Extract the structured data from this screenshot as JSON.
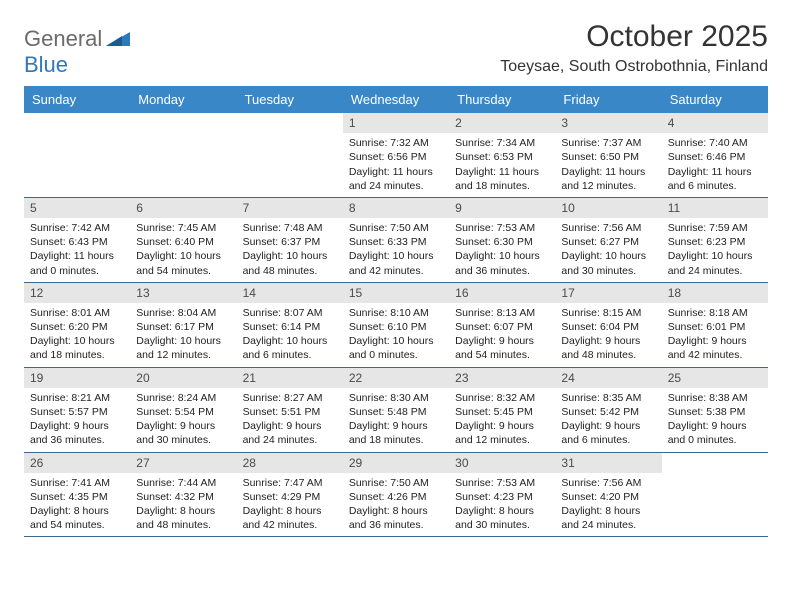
{
  "brand": {
    "part1": "General",
    "part2": "Blue"
  },
  "title": "October 2025",
  "location": "Toeysae, South Ostrobothnia, Finland",
  "colors": {
    "header_bg": "#3a87c7",
    "header_text": "#ffffff",
    "datebar_bg": "#e6e6e6",
    "week_rule": "#3a6a94",
    "brand_gray": "#6b6b6b",
    "brand_blue": "#2f78bb"
  },
  "day_names": [
    "Sunday",
    "Monday",
    "Tuesday",
    "Wednesday",
    "Thursday",
    "Friday",
    "Saturday"
  ],
  "weeks": [
    [
      {
        "date": "",
        "sunrise": "",
        "sunset": "",
        "daylight": ""
      },
      {
        "date": "",
        "sunrise": "",
        "sunset": "",
        "daylight": ""
      },
      {
        "date": "",
        "sunrise": "",
        "sunset": "",
        "daylight": ""
      },
      {
        "date": "1",
        "sunrise": "Sunrise: 7:32 AM",
        "sunset": "Sunset: 6:56 PM",
        "daylight": "Daylight: 11 hours and 24 minutes."
      },
      {
        "date": "2",
        "sunrise": "Sunrise: 7:34 AM",
        "sunset": "Sunset: 6:53 PM",
        "daylight": "Daylight: 11 hours and 18 minutes."
      },
      {
        "date": "3",
        "sunrise": "Sunrise: 7:37 AM",
        "sunset": "Sunset: 6:50 PM",
        "daylight": "Daylight: 11 hours and 12 minutes."
      },
      {
        "date": "4",
        "sunrise": "Sunrise: 7:40 AM",
        "sunset": "Sunset: 6:46 PM",
        "daylight": "Daylight: 11 hours and 6 minutes."
      }
    ],
    [
      {
        "date": "5",
        "sunrise": "Sunrise: 7:42 AM",
        "sunset": "Sunset: 6:43 PM",
        "daylight": "Daylight: 11 hours and 0 minutes."
      },
      {
        "date": "6",
        "sunrise": "Sunrise: 7:45 AM",
        "sunset": "Sunset: 6:40 PM",
        "daylight": "Daylight: 10 hours and 54 minutes."
      },
      {
        "date": "7",
        "sunrise": "Sunrise: 7:48 AM",
        "sunset": "Sunset: 6:37 PM",
        "daylight": "Daylight: 10 hours and 48 minutes."
      },
      {
        "date": "8",
        "sunrise": "Sunrise: 7:50 AM",
        "sunset": "Sunset: 6:33 PM",
        "daylight": "Daylight: 10 hours and 42 minutes."
      },
      {
        "date": "9",
        "sunrise": "Sunrise: 7:53 AM",
        "sunset": "Sunset: 6:30 PM",
        "daylight": "Daylight: 10 hours and 36 minutes."
      },
      {
        "date": "10",
        "sunrise": "Sunrise: 7:56 AM",
        "sunset": "Sunset: 6:27 PM",
        "daylight": "Daylight: 10 hours and 30 minutes."
      },
      {
        "date": "11",
        "sunrise": "Sunrise: 7:59 AM",
        "sunset": "Sunset: 6:23 PM",
        "daylight": "Daylight: 10 hours and 24 minutes."
      }
    ],
    [
      {
        "date": "12",
        "sunrise": "Sunrise: 8:01 AM",
        "sunset": "Sunset: 6:20 PM",
        "daylight": "Daylight: 10 hours and 18 minutes."
      },
      {
        "date": "13",
        "sunrise": "Sunrise: 8:04 AM",
        "sunset": "Sunset: 6:17 PM",
        "daylight": "Daylight: 10 hours and 12 minutes."
      },
      {
        "date": "14",
        "sunrise": "Sunrise: 8:07 AM",
        "sunset": "Sunset: 6:14 PM",
        "daylight": "Daylight: 10 hours and 6 minutes."
      },
      {
        "date": "15",
        "sunrise": "Sunrise: 8:10 AM",
        "sunset": "Sunset: 6:10 PM",
        "daylight": "Daylight: 10 hours and 0 minutes."
      },
      {
        "date": "16",
        "sunrise": "Sunrise: 8:13 AM",
        "sunset": "Sunset: 6:07 PM",
        "daylight": "Daylight: 9 hours and 54 minutes."
      },
      {
        "date": "17",
        "sunrise": "Sunrise: 8:15 AM",
        "sunset": "Sunset: 6:04 PM",
        "daylight": "Daylight: 9 hours and 48 minutes."
      },
      {
        "date": "18",
        "sunrise": "Sunrise: 8:18 AM",
        "sunset": "Sunset: 6:01 PM",
        "daylight": "Daylight: 9 hours and 42 minutes."
      }
    ],
    [
      {
        "date": "19",
        "sunrise": "Sunrise: 8:21 AM",
        "sunset": "Sunset: 5:57 PM",
        "daylight": "Daylight: 9 hours and 36 minutes."
      },
      {
        "date": "20",
        "sunrise": "Sunrise: 8:24 AM",
        "sunset": "Sunset: 5:54 PM",
        "daylight": "Daylight: 9 hours and 30 minutes."
      },
      {
        "date": "21",
        "sunrise": "Sunrise: 8:27 AM",
        "sunset": "Sunset: 5:51 PM",
        "daylight": "Daylight: 9 hours and 24 minutes."
      },
      {
        "date": "22",
        "sunrise": "Sunrise: 8:30 AM",
        "sunset": "Sunset: 5:48 PM",
        "daylight": "Daylight: 9 hours and 18 minutes."
      },
      {
        "date": "23",
        "sunrise": "Sunrise: 8:32 AM",
        "sunset": "Sunset: 5:45 PM",
        "daylight": "Daylight: 9 hours and 12 minutes."
      },
      {
        "date": "24",
        "sunrise": "Sunrise: 8:35 AM",
        "sunset": "Sunset: 5:42 PM",
        "daylight": "Daylight: 9 hours and 6 minutes."
      },
      {
        "date": "25",
        "sunrise": "Sunrise: 8:38 AM",
        "sunset": "Sunset: 5:38 PM",
        "daylight": "Daylight: 9 hours and 0 minutes."
      }
    ],
    [
      {
        "date": "26",
        "sunrise": "Sunrise: 7:41 AM",
        "sunset": "Sunset: 4:35 PM",
        "daylight": "Daylight: 8 hours and 54 minutes."
      },
      {
        "date": "27",
        "sunrise": "Sunrise: 7:44 AM",
        "sunset": "Sunset: 4:32 PM",
        "daylight": "Daylight: 8 hours and 48 minutes."
      },
      {
        "date": "28",
        "sunrise": "Sunrise: 7:47 AM",
        "sunset": "Sunset: 4:29 PM",
        "daylight": "Daylight: 8 hours and 42 minutes."
      },
      {
        "date": "29",
        "sunrise": "Sunrise: 7:50 AM",
        "sunset": "Sunset: 4:26 PM",
        "daylight": "Daylight: 8 hours and 36 minutes."
      },
      {
        "date": "30",
        "sunrise": "Sunrise: 7:53 AM",
        "sunset": "Sunset: 4:23 PM",
        "daylight": "Daylight: 8 hours and 30 minutes."
      },
      {
        "date": "31",
        "sunrise": "Sunrise: 7:56 AM",
        "sunset": "Sunset: 4:20 PM",
        "daylight": "Daylight: 8 hours and 24 minutes."
      },
      {
        "date": "",
        "sunrise": "",
        "sunset": "",
        "daylight": ""
      }
    ]
  ]
}
